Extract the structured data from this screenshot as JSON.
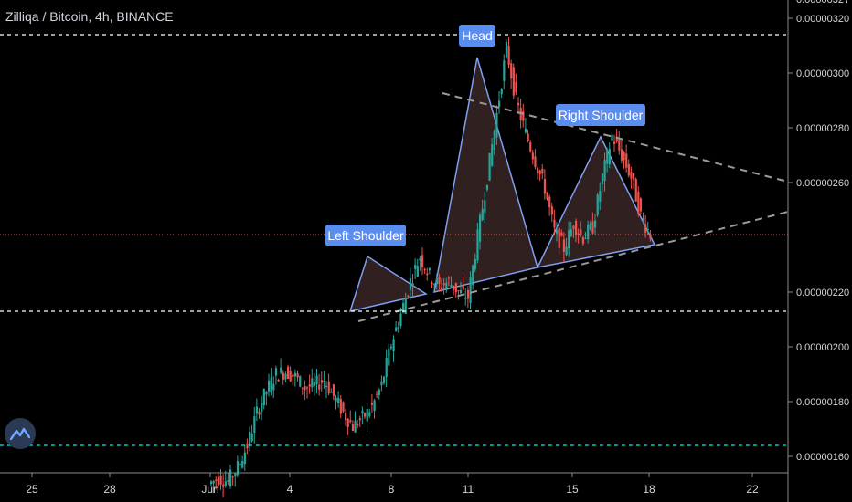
{
  "header": {
    "title": "Zilliqa / Bitcoin, 4h, BINANCE"
  },
  "colors": {
    "background": "#000000",
    "bull": "#26a69a",
    "bear": "#ef5350",
    "pattern_line": "#7f9ff0",
    "pattern_fill": "#5a3a3a",
    "label_bg": "#5b8def",
    "current_price": "#ef5350",
    "cyan_level": "#00e5ff"
  },
  "chart_data": {
    "type": "candlestick",
    "title": "Zilliqa / Bitcoin, 4h, BINANCE",
    "x_ticks": [
      "25",
      "28",
      "Jun",
      "4",
      "8",
      "11",
      "15",
      "18",
      "22"
    ],
    "y_ticks": [
      "0.00000327",
      "0.00000320",
      "0.00000300",
      "0.00000280",
      "0.00000260",
      "0.00000220",
      "0.00000200",
      "0.00000180",
      "0.00000160"
    ],
    "ylim": [
      1.57e-06,
      3.3e-06
    ],
    "current_price": "0.00000241",
    "levels": [
      {
        "value": "0.00000314",
        "style": "dashed",
        "color": "#ffffff"
      },
      {
        "value": "0.00000213",
        "style": "dashed",
        "color": "#ffffff"
      },
      {
        "value": "0.00000164",
        "style": "dashed",
        "color": "#00e5ff"
      }
    ],
    "annotations": [
      "Head",
      "Left Shoulder",
      "Right Shoulder"
    ],
    "path_points": [
      [
        0,
        1.5e-06
      ],
      [
        1,
        1.52e-06
      ],
      [
        2,
        1.51e-06
      ],
      [
        3,
        1.56e-06
      ],
      [
        4,
        1.64e-06
      ],
      [
        5,
        1.76e-06
      ],
      [
        6,
        1.84e-06
      ],
      [
        7,
        1.9e-06
      ],
      [
        8,
        1.91e-06
      ],
      [
        9,
        1.89e-06
      ],
      [
        10,
        1.85e-06
      ],
      [
        11,
        1.86e-06
      ],
      [
        12,
        1.88e-06
      ],
      [
        13,
        1.82e-06
      ],
      [
        14,
        1.76e-06
      ],
      [
        15,
        1.71e-06
      ],
      [
        16,
        1.74e-06
      ],
      [
        17,
        1.78e-06
      ],
      [
        18,
        1.86e-06
      ],
      [
        19,
        2.01e-06
      ],
      [
        20,
        2.12e-06
      ],
      [
        21,
        2.24e-06
      ],
      [
        22,
        2.33e-06
      ],
      [
        23,
        2.26e-06
      ],
      [
        24,
        2.22e-06
      ],
      [
        25,
        2.24e-06
      ],
      [
        26,
        2.2e-06
      ],
      [
        27,
        2.18e-06
      ],
      [
        28,
        2.4e-06
      ],
      [
        29,
        2.62e-06
      ],
      [
        30,
        2.85e-06
      ],
      [
        31,
        3.09e-06
      ],
      [
        32,
        2.9e-06
      ],
      [
        33,
        2.78e-06
      ],
      [
        34,
        2.68e-06
      ],
      [
        35,
        2.58e-06
      ],
      [
        36,
        2.42e-06
      ],
      [
        37,
        2.36e-06
      ],
      [
        38,
        2.45e-06
      ],
      [
        39,
        2.4e-06
      ],
      [
        40,
        2.44e-06
      ],
      [
        41,
        2.62e-06
      ],
      [
        42,
        2.77e-06
      ],
      [
        43,
        2.7e-06
      ],
      [
        44,
        2.62e-06
      ],
      [
        45,
        2.48e-06
      ],
      [
        46,
        2.41e-06
      ]
    ]
  }
}
